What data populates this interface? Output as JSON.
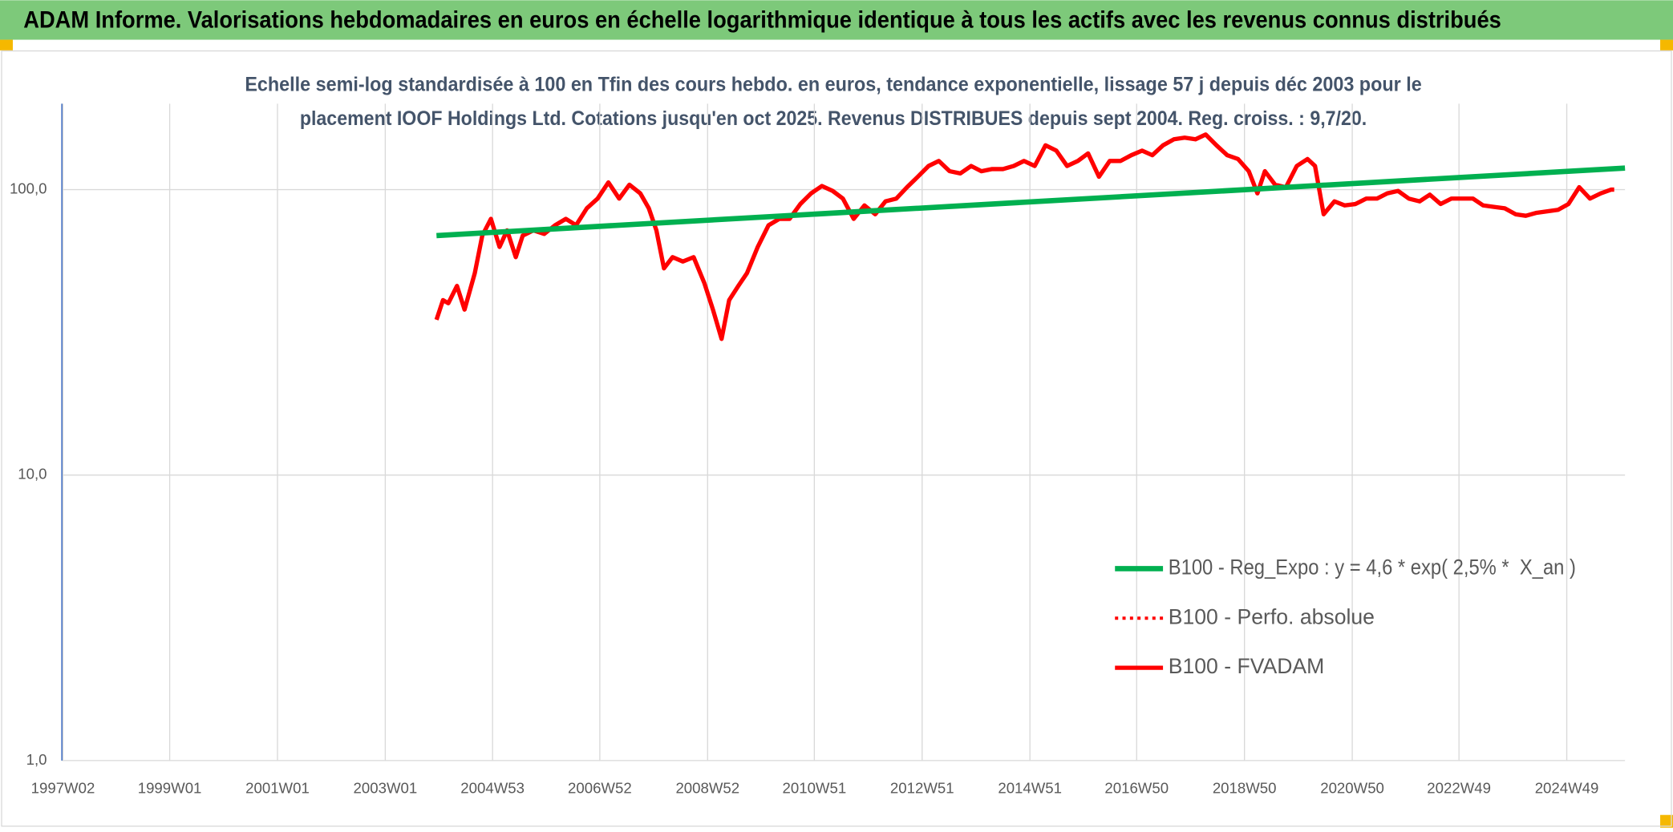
{
  "chart_data": {
    "type": "line",
    "title": "ADAM Informe. Valorisations hebdomadaires en euros en échelle logarithmique identique à tous les actifs avec les revenus connus distribués",
    "subtitle_lines": [
      "Echelle semi-log standardisée à 100 en Tfin des cours hebdo. en euros, tendance exponentielle, lissage 57 j depuis déc 2003 pour le",
      "placement IOOF Holdings Ltd. Cotations jusqu'en oct 2025. Revenus DISTRIBUES depuis sept 2004. Reg. croiss. : 9,7/20."
    ],
    "log_scale": true,
    "grid": true,
    "legend": "lower right",
    "xlim": [
      1997,
      2026
    ],
    "xticks": [
      {
        "value": 1997.02,
        "label": "1997W02"
      },
      {
        "value": 1999.0,
        "label": "1999W01"
      },
      {
        "value": 2001.0,
        "label": "2001W01"
      },
      {
        "value": 2003.0,
        "label": "2003W01"
      },
      {
        "value": 2004.99,
        "label": "2004W53"
      },
      {
        "value": 2006.98,
        "label": "2006W52"
      },
      {
        "value": 2008.98,
        "label": "2008W52"
      },
      {
        "value": 2010.96,
        "label": "2010W51"
      },
      {
        "value": 2012.96,
        "label": "2012W51"
      },
      {
        "value": 2014.96,
        "label": "2014W51"
      },
      {
        "value": 2016.94,
        "label": "2016W50"
      },
      {
        "value": 2018.94,
        "label": "2018W50"
      },
      {
        "value": 2020.94,
        "label": "2020W50"
      },
      {
        "value": 2022.92,
        "label": "2022W49"
      },
      {
        "value": 2024.92,
        "label": "2024W49"
      }
    ],
    "ylim": [
      1,
      200
    ],
    "yticks": [
      {
        "value": 1,
        "label": "1,0"
      },
      {
        "value": 10,
        "label": "10,0"
      },
      {
        "value": 100,
        "label": "100,0"
      }
    ],
    "series": [
      {
        "name": "B100 - Reg_Expo : y = 4,6 * exp( 2,5% *  X_an )",
        "color": "#00b050",
        "style": "solid",
        "width": 5,
        "x": [
          2003.95,
          2026.0
        ],
        "values": [
          69,
          119
        ]
      },
      {
        "name": "B100 - Perfo. absolue",
        "color": "#ff0000",
        "style": "dotted",
        "width": 3,
        "x": [
          2003.95,
          2004.07,
          2004.17,
          2004.33,
          2004.47,
          2004.66,
          2004.8,
          2004.96,
          2005.12,
          2005.26,
          2005.42,
          2005.55,
          2005.75,
          2005.95,
          2006.15,
          2006.35,
          2006.54,
          2006.74,
          2006.94,
          2007.14,
          2007.34,
          2007.53,
          2007.73,
          2007.89,
          2008.03,
          2008.17,
          2008.33,
          2008.52,
          2008.72,
          2008.92,
          2009.08,
          2009.24,
          2009.38,
          2009.55,
          2009.71,
          2009.91,
          2010.11,
          2010.31,
          2010.5,
          2010.7,
          2010.9,
          2011.1,
          2011.3,
          2011.49,
          2011.69,
          2011.89,
          2012.09,
          2012.28,
          2012.48,
          2012.68,
          2012.88,
          2013.08,
          2013.27,
          2013.47,
          2013.67,
          2013.87,
          2014.06,
          2014.26,
          2014.46,
          2014.66,
          2014.85,
          2015.05,
          2015.25,
          2015.45,
          2015.65,
          2015.85,
          2016.04,
          2016.24,
          2016.44,
          2016.64,
          2016.84,
          2017.04,
          2017.23,
          2017.43,
          2017.63,
          2017.83,
          2018.03,
          2018.22,
          2018.42,
          2018.62,
          2018.82,
          2019.02,
          2019.18,
          2019.32,
          2019.51,
          2019.71,
          2019.91,
          2020.11,
          2020.25,
          2020.41,
          2020.61,
          2020.8,
          2021.0,
          2021.2,
          2021.4,
          2021.59,
          2021.79,
          2021.99,
          2022.19,
          2022.38,
          2022.58,
          2022.78,
          2022.98,
          2023.18,
          2023.37,
          2023.57,
          2023.77,
          2023.97,
          2024.16,
          2024.36,
          2024.56,
          2024.76,
          2024.95,
          2025.15,
          2025.35,
          2025.55,
          2025.74,
          2025.8
        ],
        "values": [
          35,
          41,
          40,
          46,
          38,
          51,
          69,
          79,
          63,
          72,
          58,
          69,
          72,
          70,
          75,
          79,
          75,
          86,
          93,
          106,
          93,
          104,
          97,
          86,
          72,
          53,
          58,
          56,
          58,
          47,
          38,
          30,
          41,
          46,
          51,
          63,
          75,
          79,
          79,
          89,
          97,
          103,
          99,
          93,
          79,
          88,
          82,
          91,
          93,
          102,
          111,
          121,
          126,
          116,
          114,
          121,
          116,
          118,
          118,
          121,
          126,
          121,
          143,
          137,
          121,
          126,
          134,
          111,
          126,
          126,
          132,
          137,
          132,
          143,
          150,
          152,
          150,
          156,
          143,
          132,
          128,
          116,
          97,
          116,
          104,
          102,
          121,
          128,
          121,
          82,
          91,
          88,
          89,
          93,
          93,
          97,
          99,
          93,
          91,
          96,
          89,
          93,
          93,
          93,
          88,
          87,
          86,
          82,
          81,
          83,
          84,
          85,
          89,
          102,
          93,
          97,
          100,
          100
        ]
      },
      {
        "name": "B100 - FVADAM",
        "color": "#ff0000",
        "style": "solid",
        "width": 4,
        "x": [
          2003.95,
          2004.07,
          2004.17,
          2004.33,
          2004.47,
          2004.66,
          2004.8,
          2004.96,
          2005.12,
          2005.26,
          2005.42,
          2005.55,
          2005.75,
          2005.95,
          2006.15,
          2006.35,
          2006.54,
          2006.74,
          2006.94,
          2007.14,
          2007.34,
          2007.53,
          2007.73,
          2007.89,
          2008.03,
          2008.17,
          2008.33,
          2008.52,
          2008.72,
          2008.92,
          2009.08,
          2009.24,
          2009.38,
          2009.55,
          2009.71,
          2009.91,
          2010.11,
          2010.31,
          2010.5,
          2010.7,
          2010.9,
          2011.1,
          2011.3,
          2011.49,
          2011.69,
          2011.89,
          2012.09,
          2012.28,
          2012.48,
          2012.68,
          2012.88,
          2013.08,
          2013.27,
          2013.47,
          2013.67,
          2013.87,
          2014.06,
          2014.26,
          2014.46,
          2014.66,
          2014.85,
          2015.05,
          2015.25,
          2015.45,
          2015.65,
          2015.85,
          2016.04,
          2016.24,
          2016.44,
          2016.64,
          2016.84,
          2017.04,
          2017.23,
          2017.43,
          2017.63,
          2017.83,
          2018.03,
          2018.22,
          2018.42,
          2018.62,
          2018.82,
          2019.02,
          2019.18,
          2019.32,
          2019.51,
          2019.71,
          2019.91,
          2020.11,
          2020.25,
          2020.41,
          2020.61,
          2020.8,
          2021.0,
          2021.2,
          2021.4,
          2021.59,
          2021.79,
          2021.99,
          2022.19,
          2022.38,
          2022.58,
          2022.78,
          2022.98,
          2023.18,
          2023.37,
          2023.57,
          2023.77,
          2023.97,
          2024.16,
          2024.36,
          2024.56,
          2024.76,
          2024.95,
          2025.15,
          2025.35,
          2025.55,
          2025.74,
          2025.8
        ],
        "values": [
          35,
          41,
          40,
          46,
          38,
          51,
          69,
          79,
          63,
          72,
          58,
          69,
          72,
          70,
          75,
          79,
          75,
          86,
          93,
          106,
          93,
          104,
          97,
          86,
          72,
          53,
          58,
          56,
          58,
          47,
          38,
          30,
          41,
          46,
          51,
          63,
          75,
          79,
          79,
          89,
          97,
          103,
          99,
          93,
          79,
          88,
          82,
          91,
          93,
          102,
          111,
          121,
          126,
          116,
          114,
          121,
          116,
          118,
          118,
          121,
          126,
          121,
          143,
          137,
          121,
          126,
          134,
          111,
          126,
          126,
          132,
          137,
          132,
          143,
          150,
          152,
          150,
          156,
          143,
          132,
          128,
          116,
          97,
          116,
          104,
          102,
          121,
          128,
          121,
          82,
          91,
          88,
          89,
          93,
          93,
          97,
          99,
          93,
          91,
          96,
          89,
          93,
          93,
          93,
          88,
          87,
          86,
          82,
          81,
          83,
          84,
          85,
          89,
          102,
          93,
          97,
          100,
          100
        ]
      }
    ]
  }
}
